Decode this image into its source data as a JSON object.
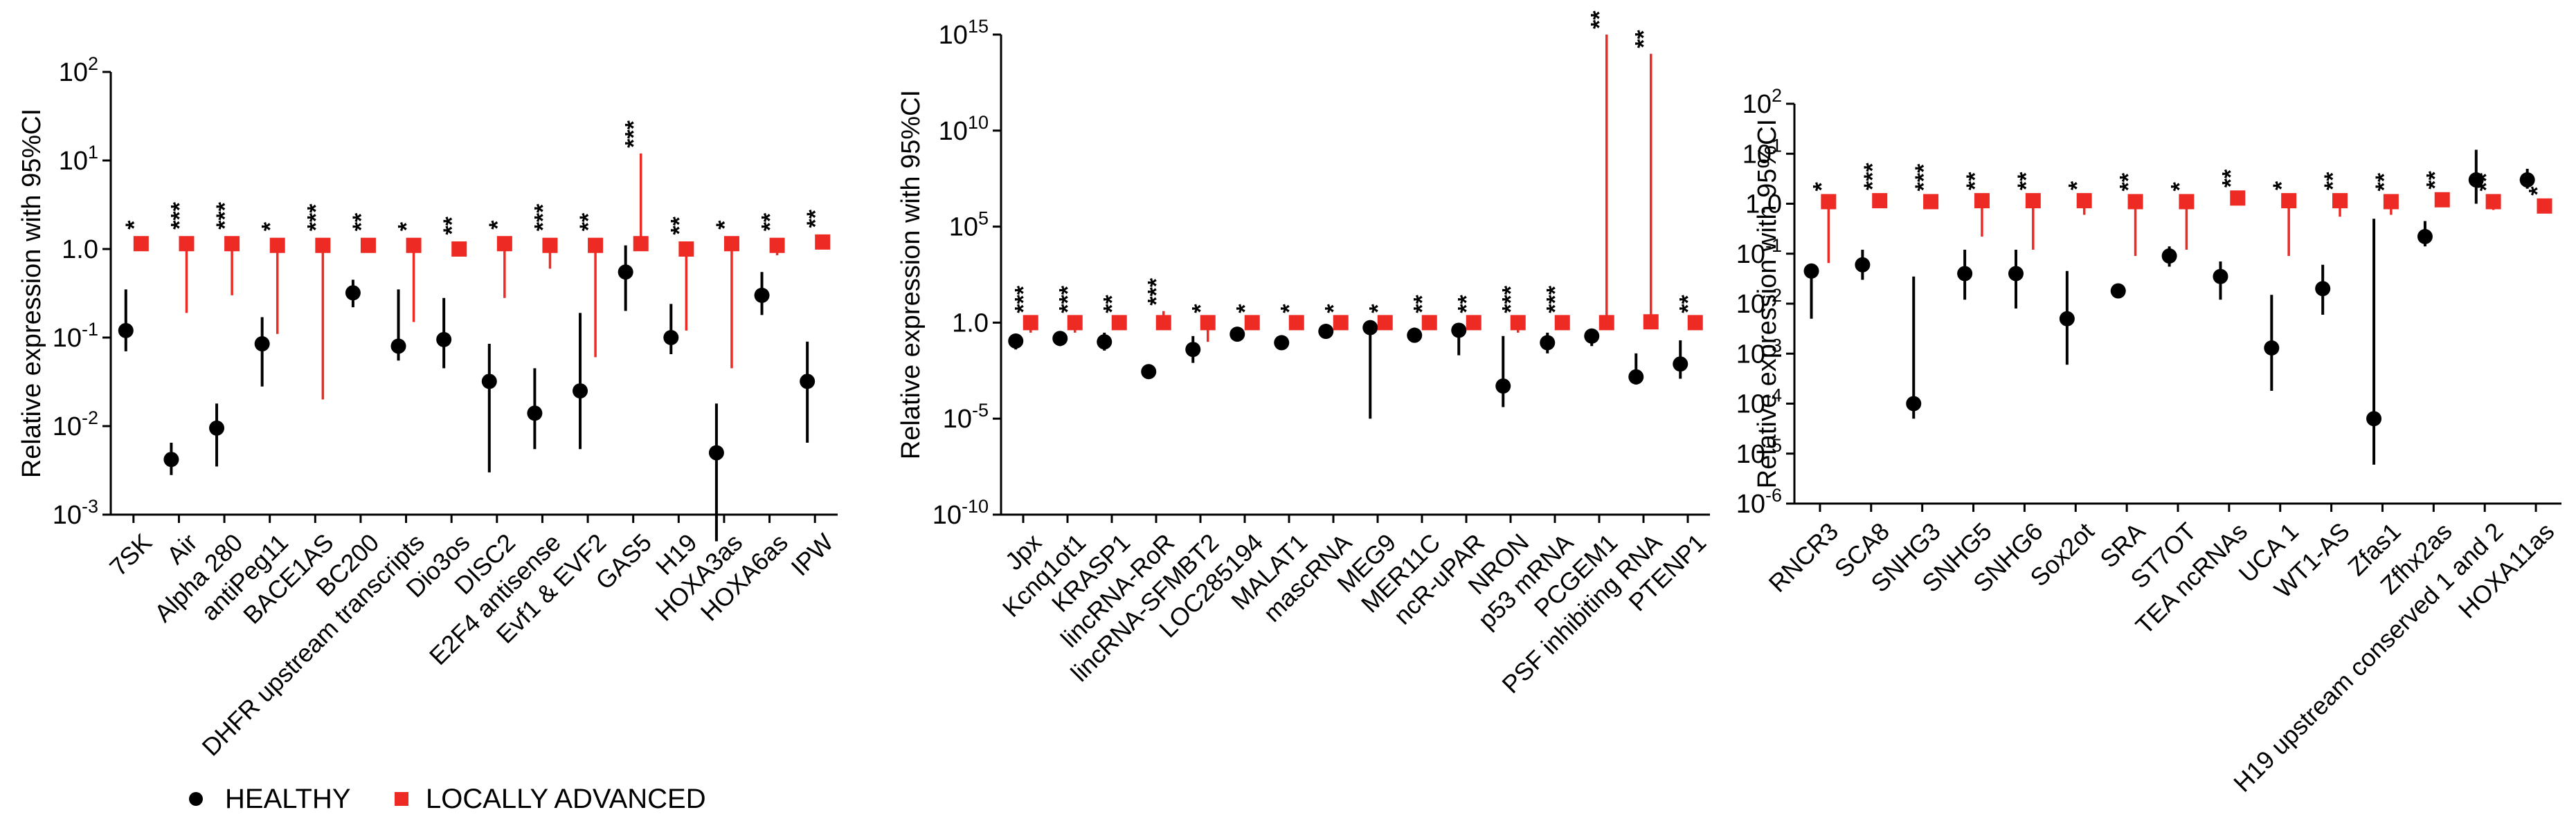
{
  "legend": {
    "healthy_label": "HEALTHY",
    "advanced_label": "LOCALLY ADVANCED"
  },
  "colors": {
    "healthy": "#000000",
    "advanced": "#ee2a24",
    "axis": "#000000"
  },
  "chart_data": [
    {
      "type": "scatter",
      "title": "",
      "ylabel": "Relative expression with 95%CI",
      "yscale": "log",
      "ylim": [
        0.001,
        100
      ],
      "yticks": [
        {
          "value": 100,
          "base": "10",
          "exp": "2"
        },
        {
          "value": 10,
          "base": "10",
          "exp": "1"
        },
        {
          "value": 1,
          "text": "1.0"
        },
        {
          "value": 0.1,
          "base": "10",
          "exp": "-1"
        },
        {
          "value": 0.01,
          "base": "10",
          "exp": "-2"
        },
        {
          "value": 0.001,
          "base": "10",
          "exp": "-3"
        }
      ],
      "categories": [
        "7SK",
        "Air",
        "Alpha 280",
        "antiPeg11",
        "BACE1AS",
        "BC200",
        "DHFR upstream transcripts",
        "Dio3os",
        "DISC2",
        "E2F4 antisense",
        "Evf1 & EVF2",
        "GAS5",
        "H19",
        "HOXA3as",
        "HOXA6as",
        "IPW"
      ],
      "significance": [
        "*",
        "***",
        "***",
        "*",
        "***",
        "**",
        "*",
        "**",
        "*",
        "***",
        "**",
        "***",
        "**",
        "*",
        "**",
        "**"
      ],
      "series": [
        {
          "name": "HEALTHY",
          "values": [
            0.12,
            0.0042,
            0.0095,
            0.085,
            null,
            0.32,
            0.08,
            0.095,
            0.032,
            0.014,
            0.025,
            0.55,
            0.1,
            0.005,
            0.3,
            0.032
          ],
          "ci_low": [
            0.07,
            0.0028,
            0.0035,
            0.028,
            null,
            0.22,
            0.055,
            0.045,
            0.003,
            0.0055,
            0.0055,
            0.2,
            0.065,
            0.0005,
            0.18,
            0.0065
          ],
          "ci_high": [
            0.35,
            0.0065,
            0.018,
            0.17,
            null,
            0.45,
            0.35,
            0.28,
            0.085,
            0.045,
            0.19,
            1.1,
            0.24,
            0.018,
            0.55,
            0.09
          ]
        },
        {
          "name": "LOCALLY ADVANCED",
          "values": [
            1.15,
            1.15,
            1.15,
            1.1,
            1.1,
            1.1,
            1.1,
            1.0,
            1.15,
            1.1,
            1.1,
            1.15,
            1.0,
            1.15,
            1.1,
            1.2
          ],
          "ci_low": [
            1.0,
            0.19,
            0.3,
            0.11,
            0.02,
            1.0,
            0.15,
            0.85,
            0.28,
            0.6,
            0.06,
            1.0,
            0.12,
            0.045,
            0.85,
            1.1
          ],
          "ci_high": [
            1.25,
            1.3,
            1.3,
            1.25,
            1.25,
            1.2,
            1.3,
            1.2,
            1.3,
            1.3,
            1.3,
            12.0,
            1.15,
            1.3,
            1.25,
            1.3
          ]
        }
      ]
    },
    {
      "type": "scatter",
      "title": "",
      "ylabel": "Relative expression with 95%CI",
      "yscale": "log",
      "ylim": [
        1e-10,
        1000000000000000.0
      ],
      "yticks": [
        {
          "value": 1000000000000000.0,
          "base": "10",
          "exp": "15"
        },
        {
          "value": 10000000000.0,
          "base": "10",
          "exp": "10"
        },
        {
          "value": 100000.0,
          "base": "10",
          "exp": "5"
        },
        {
          "value": 1,
          "text": "1.0"
        },
        {
          "value": 1e-05,
          "base": "10",
          "exp": "-5"
        },
        {
          "value": 1e-10,
          "base": "10",
          "exp": "-10"
        }
      ],
      "categories": [
        "Jpx",
        "Kcnq1ot1",
        "KRASP1",
        "lincRNA-RoR",
        "lincRNA-SFMBT2",
        "LOC285194",
        "MALAT1",
        "mascRNA",
        "MEG9",
        "MER11C",
        "ncR-uPAR",
        "NRON",
        "p53 mRNA",
        "PCGEM1",
        "PSF inhibiting RNA",
        "PTENP1"
      ],
      "significance": [
        "***",
        "***",
        "**",
        "***",
        "*",
        "*",
        "*",
        "*",
        "*",
        "**",
        "**",
        "***",
        "***",
        "**",
        "**",
        "**"
      ],
      "series": [
        {
          "name": "HEALTHY",
          "values": [
            0.11,
            0.15,
            0.1,
            0.0028,
            0.04,
            0.25,
            0.09,
            0.35,
            0.55,
            0.22,
            0.4,
            0.0005,
            0.09,
            0.2,
            0.0015,
            0.007
          ],
          "ci_low": [
            0.04,
            0.06,
            0.035,
            0.0012,
            0.008,
            0.12,
            0.05,
            0.2,
            1e-05,
            0.09,
            0.02,
            4e-05,
            0.025,
            0.06,
            0.0006,
            0.0012
          ],
          "ci_high": [
            0.25,
            0.35,
            0.3,
            0.006,
            0.2,
            0.55,
            0.2,
            0.75,
            1.2,
            0.55,
            0.9,
            0.2,
            0.3,
            0.45,
            0.025,
            0.12
          ]
        },
        {
          "name": "LOCALLY ADVANCED",
          "values": [
            1.0,
            1.0,
            1.0,
            1.0,
            1.0,
            1.0,
            1.0,
            1.0,
            1.0,
            1.0,
            1.0,
            1.0,
            1.0,
            1.0,
            1.1,
            1.0
          ],
          "ci_low": [
            0.3,
            0.3,
            0.5,
            0.5,
            0.1,
            0.6,
            0.6,
            0.6,
            0.5,
            0.6,
            0.5,
            0.3,
            0.6,
            0.8,
            0.9,
            0.7
          ],
          "ci_high": [
            1.6,
            1.6,
            1.6,
            4,
            1.6,
            1.6,
            1.6,
            1.6,
            1.6,
            1.6,
            1.6,
            1.6,
            1.6,
            1000000000000000.0,
            100000000000000.0,
            1.6
          ]
        }
      ]
    },
    {
      "type": "scatter",
      "title": "",
      "ylabel": "Relative expression with 95%CI",
      "yscale": "log",
      "ylim": [
        1e-06,
        100
      ],
      "yticks": [
        {
          "value": 100,
          "base": "10",
          "exp": "2"
        },
        {
          "value": 10,
          "base": "10",
          "exp": "1"
        },
        {
          "value": 1,
          "text": "1.0"
        },
        {
          "value": 0.1,
          "base": "10",
          "exp": "-1"
        },
        {
          "value": 0.01,
          "base": "10",
          "exp": "-2"
        },
        {
          "value": 0.001,
          "base": "10",
          "exp": "-3"
        },
        {
          "value": 0.0001,
          "base": "10",
          "exp": "-4"
        },
        {
          "value": 1e-05,
          "base": "10",
          "exp": "-5"
        },
        {
          "value": 1e-06,
          "base": "10",
          "exp": "-6"
        }
      ],
      "categories": [
        "RNCR3",
        "SCA8",
        "SNHG3",
        "SNHG5",
        "SNHG6",
        "Sox2ot",
        "SRA",
        "ST7OT",
        "TEA ncRNAs",
        "UCA 1",
        "WT1-AS",
        "Zfas1",
        "Zfhx2as",
        "H19 upstream conserved 1 and 2",
        "HOXA11as"
      ],
      "significance": [
        "*",
        "***",
        "***",
        "**",
        "**",
        "*",
        "**",
        "*",
        "**",
        "*",
        "**",
        "**",
        "**",
        "**",
        "*"
      ],
      "series": [
        {
          "name": "HEALTHY",
          "values": [
            0.045,
            0.06,
            0.0001,
            0.04,
            0.04,
            0.005,
            0.018,
            0.09,
            0.035,
            0.0013,
            0.02,
            5e-05,
            0.22,
            3.0,
            3.0
          ],
          "ci_low": [
            0.005,
            0.03,
            5e-05,
            0.012,
            0.008,
            0.0006,
            0.015,
            0.055,
            0.012,
            0.00018,
            0.006,
            6e-06,
            0.14,
            1.0,
            2.0
          ],
          "ci_high": [
            0.06,
            0.12,
            0.035,
            0.12,
            0.12,
            0.045,
            0.022,
            0.14,
            0.07,
            0.015,
            0.06,
            0.5,
            0.45,
            12.0,
            5.0
          ]
        },
        {
          "name": "LOCALLY ADVANCED",
          "values": [
            1.1,
            1.15,
            1.1,
            1.15,
            1.15,
            1.15,
            1.1,
            1.1,
            1.3,
            1.15,
            1.15,
            1.1,
            1.2,
            1.1,
            0.9
          ],
          "ci_low": [
            0.065,
            1.0,
            0.95,
            0.22,
            0.12,
            0.6,
            0.09,
            0.12,
            1.1,
            0.09,
            0.55,
            0.6,
            0.9,
            0.75,
            0.65
          ],
          "ci_high": [
            1.3,
            1.3,
            1.3,
            1.4,
            1.4,
            1.35,
            1.3,
            1.3,
            1.5,
            1.35,
            1.35,
            1.3,
            1.4,
            1.3,
            1.1
          ]
        }
      ]
    }
  ]
}
